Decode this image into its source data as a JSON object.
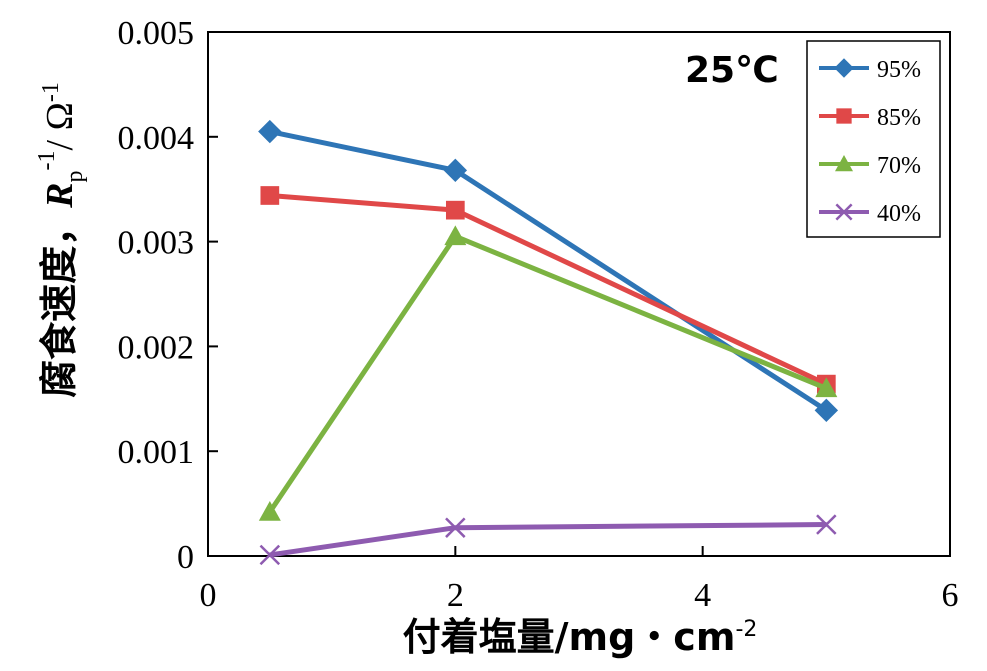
{
  "chart_data": {
    "type": "line",
    "xlabel": "付着塩量/mg・cm",
    "xlabel_sup": "-2",
    "ylabel_main": "腐食速度，",
    "ylabel_R": "R",
    "ylabel_sub": "p",
    "ylabel_sup1": "-1",
    "ylabel_unit": "/ Ω",
    "ylabel_sup2": "-1",
    "annotation": "25℃",
    "xlim": [
      0,
      6
    ],
    "ylim": [
      0,
      0.005
    ],
    "xticks": [
      0,
      2,
      4,
      6
    ],
    "xtick_labels": [
      "0",
      "2",
      "4",
      "6"
    ],
    "yticks": [
      0,
      0.001,
      0.002,
      0.003,
      0.004,
      0.005
    ],
    "ytick_labels": [
      "0",
      "0.001",
      "0.002",
      "0.003",
      "0.004",
      "0.005"
    ],
    "grid": false,
    "legend_position": "top-right",
    "series": [
      {
        "name": "95%",
        "color": "#2E75B6",
        "marker": "diamond",
        "x": [
          0.5,
          2,
          5
        ],
        "y": [
          0.00405,
          0.00368,
          0.00139
        ]
      },
      {
        "name": "85%",
        "color": "#E04848",
        "marker": "square",
        "x": [
          0.5,
          2,
          5
        ],
        "y": [
          0.00344,
          0.0033,
          0.00164
        ]
      },
      {
        "name": "70%",
        "color": "#7CB342",
        "marker": "triangle",
        "x": [
          0.5,
          2,
          5
        ],
        "y": [
          0.00042,
          0.00305,
          0.0016
        ]
      },
      {
        "name": "40%",
        "color": "#8E5BB0",
        "marker": "x",
        "x": [
          0.5,
          2,
          5
        ],
        "y": [
          1e-05,
          0.00027,
          0.0003
        ]
      }
    ]
  }
}
